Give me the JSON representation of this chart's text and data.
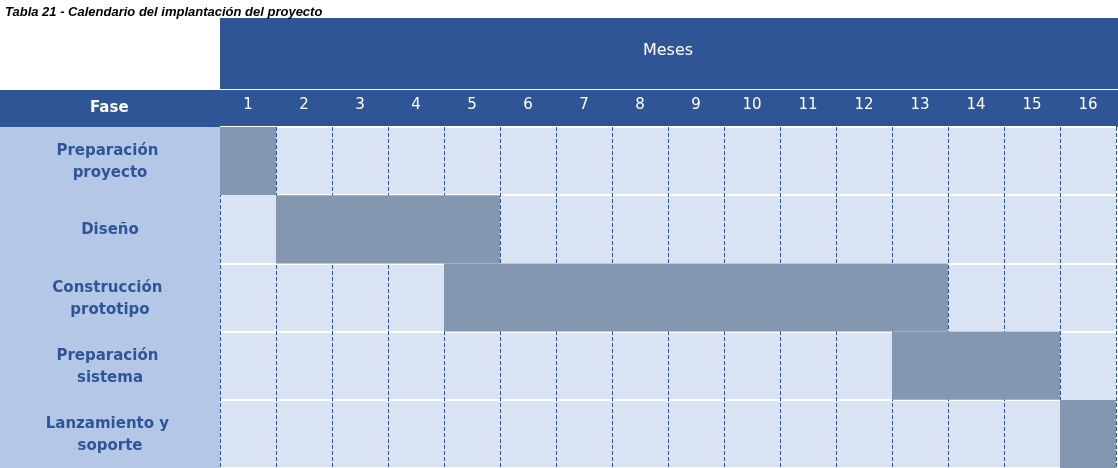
{
  "chart_data": {
    "type": "bar",
    "orientation": "horizontal",
    "title": "Tabla 21 - Calendario del implantación del proyecto",
    "xlabel": "Meses",
    "ylabel": "Fase",
    "categories": [
      "Preparación proyecto",
      "Diseño",
      "Construcción prototipo",
      "Preparación sistema",
      "Lanzamiento y soporte"
    ],
    "base": [
      0,
      1,
      4,
      12,
      15
    ],
    "values": [
      1,
      4,
      9,
      3,
      1
    ],
    "color": "#8497b0",
    "xlim": [
      0,
      16
    ],
    "xticks": [
      {
        "value": 0,
        "label": null
      },
      {
        "value": 0.5,
        "label": "1"
      },
      {
        "value": 1,
        "label": null
      },
      {
        "value": 1.5,
        "label": "2"
      },
      {
        "value": 2,
        "label": null
      },
      {
        "value": 2.5,
        "label": "3"
      },
      {
        "value": 3,
        "label": null
      },
      {
        "value": 3.5,
        "label": "4"
      },
      {
        "value": 4,
        "label": null
      },
      {
        "value": 4.5,
        "label": "5"
      },
      {
        "value": 5,
        "label": null
      },
      {
        "value": 5.5,
        "label": "6"
      },
      {
        "value": 6,
        "label": null
      },
      {
        "value": 6.5,
        "label": "7"
      },
      {
        "value": 7,
        "label": null
      },
      {
        "value": 7.5,
        "label": "8"
      },
      {
        "value": 8,
        "label": null
      },
      {
        "value": 8.5,
        "label": "9"
      },
      {
        "value": 9,
        "label": null
      },
      {
        "value": 9.5,
        "label": "10"
      },
      {
        "value": 10,
        "label": null
      },
      {
        "value": 10.5,
        "label": "11"
      },
      {
        "value": 11,
        "label": null
      },
      {
        "value": 11.5,
        "label": "12"
      },
      {
        "value": 12,
        "label": null
      },
      {
        "value": 12.5,
        "label": "13"
      },
      {
        "value": 13,
        "label": null
      },
      {
        "value": 13.5,
        "label": "14"
      },
      {
        "value": 14,
        "label": null
      },
      {
        "value": 14.5,
        "label": "15"
      },
      {
        "value": 15,
        "label": null
      },
      {
        "value": 15.5,
        "label": "16"
      },
      {
        "value": 16,
        "label": null
      }
    ],
    "grid": true
  }
}
